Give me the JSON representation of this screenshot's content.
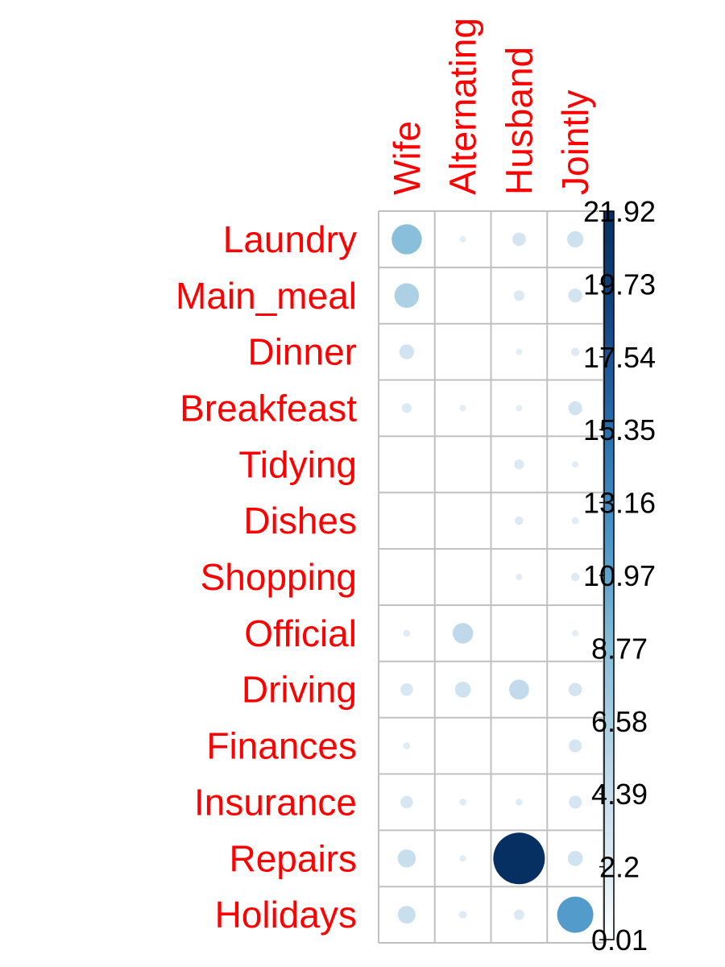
{
  "chart_data": {
    "type": "heatmap",
    "title": "",
    "columns": [
      "Wife",
      "Alternating",
      "Husband",
      "Jointly"
    ],
    "rows": [
      "Laundry",
      "Main_meal",
      "Dinner",
      "Breakfeast",
      "Tidying",
      "Dishes",
      "Shopping",
      "Official",
      "Driving",
      "Finances",
      "Insurance",
      "Repairs",
      "Holidays"
    ],
    "values": [
      [
        7.5,
        0.1,
        1.5,
        2.2
      ],
      [
        5.0,
        0.0,
        0.9,
        1.6
      ],
      [
        1.8,
        0.0,
        0.2,
        0.6
      ],
      [
        0.8,
        0.3,
        0.1,
        1.6
      ],
      [
        0.0,
        0.0,
        0.8,
        0.3
      ],
      [
        0.0,
        0.0,
        0.6,
        0.4
      ],
      [
        0.0,
        0.0,
        0.2,
        0.6
      ],
      [
        0.4,
        3.5,
        0.0,
        0.1
      ],
      [
        1.3,
        2.1,
        3.3,
        1.5
      ],
      [
        0.4,
        0.0,
        0.0,
        1.4
      ],
      [
        1.3,
        0.4,
        0.4,
        1.4
      ],
      [
        2.7,
        0.3,
        21.92,
        1.9
      ],
      [
        2.6,
        0.5,
        0.9,
        10.8
      ]
    ],
    "colorbar": {
      "ticks": [
        "21.92",
        "19.73",
        "17.54",
        "15.35",
        "13.16",
        "10.97",
        "8.77",
        "6.58",
        "4.39",
        "2.2",
        "0.01"
      ],
      "min": 0.01,
      "max": 21.92,
      "low_color": "#ffffff",
      "high_color": "#053061"
    },
    "label_color": "#ff0000",
    "grid_color": "#c0c0c0"
  }
}
